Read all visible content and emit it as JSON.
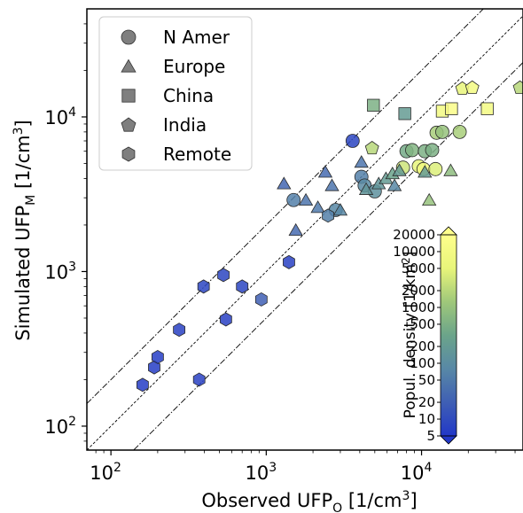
{
  "chart_data": {
    "type": "scatter",
    "xscale": "log",
    "yscale": "log",
    "xlim": [
      70,
      45000
    ],
    "ylim": [
      70,
      50000
    ],
    "xticks": [
      {
        "value": 100,
        "base": "10",
        "exp": "2"
      },
      {
        "value": 1000,
        "base": "10",
        "exp": "3"
      },
      {
        "value": 10000,
        "base": "10",
        "exp": "4"
      }
    ],
    "yticks": [
      {
        "value": 100,
        "base": "10",
        "exp": "2"
      },
      {
        "value": 1000,
        "base": "10",
        "exp": "3"
      },
      {
        "value": 10000,
        "base": "10",
        "exp": "4"
      }
    ],
    "xlabel": {
      "main": "Observed UFP",
      "sub": "O",
      "unit_pre": " [1/cm",
      "unit_sup": "3",
      "unit_post": "]"
    },
    "ylabel": {
      "main": "Simulated UFP",
      "sub": "M",
      "unit_pre": " [1/cm",
      "unit_sup": "3",
      "unit_post": "]"
    },
    "reference_lines": [
      {
        "factor": 2,
        "style": "dash-dot"
      },
      {
        "factor": 1,
        "style": "dashed"
      },
      {
        "factor": 0.5,
        "style": "dash-dot"
      }
    ],
    "legend": {
      "position": "top-left",
      "entries": [
        {
          "label": "N Amer",
          "marker": "circle"
        },
        {
          "label": "Europe",
          "marker": "triangle"
        },
        {
          "label": "China",
          "marker": "square"
        },
        {
          "label": "India",
          "marker": "pentagon"
        },
        {
          "label": "Remote",
          "marker": "hexagon"
        }
      ]
    },
    "colorbar": {
      "label_pre": "Popul. density [1/km",
      "label_sup": "2",
      "label_post": "]",
      "scale": "log",
      "range": [
        5,
        20000
      ],
      "colors": [
        "#2238c8",
        "#3f5fb4",
        "#5888a6",
        "#6ba48a",
        "#9fc87a",
        "#e8f57a",
        "#ffff8c"
      ],
      "ticks": [
        {
          "value": 20000,
          "label": "20000"
        },
        {
          "value": 10000,
          "label": "10000"
        },
        {
          "value": 5000,
          "label": "5000"
        },
        {
          "value": 2000,
          "label": "2000"
        },
        {
          "value": 1000,
          "label": "1000"
        },
        {
          "value": 500,
          "label": "500"
        },
        {
          "value": 200,
          "label": "200"
        },
        {
          "value": 100,
          "label": "100"
        },
        {
          "value": 50,
          "label": "50"
        },
        {
          "value": 20,
          "label": "20"
        },
        {
          "value": 10,
          "label": "10"
        },
        {
          "value": 5,
          "label": "5"
        }
      ]
    },
    "series": [
      {
        "name": "N Amer",
        "marker": "circle",
        "points": [
          {
            "x": 3600,
            "y": 7000,
            "c": 8
          },
          {
            "x": 1500,
            "y": 2900,
            "c": 60
          },
          {
            "x": 2800,
            "y": 2500,
            "c": 80
          },
          {
            "x": 4100,
            "y": 4100,
            "c": 60
          },
          {
            "x": 4300,
            "y": 3600,
            "c": 90
          },
          {
            "x": 5000,
            "y": 3300,
            "c": 120
          },
          {
            "x": 8000,
            "y": 6000,
            "c": 400
          },
          {
            "x": 8700,
            "y": 6100,
            "c": 600
          },
          {
            "x": 10500,
            "y": 6000,
            "c": 500
          },
          {
            "x": 11700,
            "y": 6100,
            "c": 500
          },
          {
            "x": 12500,
            "y": 7900,
            "c": 1500
          },
          {
            "x": 13600,
            "y": 8000,
            "c": 1000
          },
          {
            "x": 17600,
            "y": 8000,
            "c": 1500
          },
          {
            "x": 7600,
            "y": 4700,
            "c": 3000
          },
          {
            "x": 9600,
            "y": 4800,
            "c": 5000
          },
          {
            "x": 10300,
            "y": 4600,
            "c": 8000
          },
          {
            "x": 12300,
            "y": 4600,
            "c": 4000
          }
        ]
      },
      {
        "name": "Europe",
        "marker": "triangle",
        "points": [
          {
            "x": 1300,
            "y": 3700,
            "c": 25
          },
          {
            "x": 1550,
            "y": 1850,
            "c": 30
          },
          {
            "x": 1800,
            "y": 2900,
            "c": 40
          },
          {
            "x": 2150,
            "y": 2600,
            "c": 50
          },
          {
            "x": 2400,
            "y": 4400,
            "c": 30
          },
          {
            "x": 2650,
            "y": 3600,
            "c": 40
          },
          {
            "x": 3000,
            "y": 2500,
            "c": 80
          },
          {
            "x": 4100,
            "y": 5100,
            "c": 40
          },
          {
            "x": 4400,
            "y": 3400,
            "c": 150
          },
          {
            "x": 5300,
            "y": 3700,
            "c": 150
          },
          {
            "x": 5900,
            "y": 4000,
            "c": 200
          },
          {
            "x": 6500,
            "y": 4300,
            "c": 300
          },
          {
            "x": 7200,
            "y": 4500,
            "c": 200
          },
          {
            "x": 6700,
            "y": 3600,
            "c": 80
          },
          {
            "x": 11200,
            "y": 2900,
            "c": 1000
          },
          {
            "x": 10500,
            "y": 4400,
            "c": 200
          },
          {
            "x": 15400,
            "y": 4500,
            "c": 800
          }
        ]
      },
      {
        "name": "China",
        "marker": "square",
        "points": [
          {
            "x": 4900,
            "y": 11900,
            "c": 500
          },
          {
            "x": 7800,
            "y": 10500,
            "c": 200
          },
          {
            "x": 13600,
            "y": 10900,
            "c": 10000
          },
          {
            "x": 15600,
            "y": 11300,
            "c": 15000
          },
          {
            "x": 26500,
            "y": 11300,
            "c": 10000
          }
        ]
      },
      {
        "name": "India",
        "marker": "pentagon",
        "points": [
          {
            "x": 4800,
            "y": 6300,
            "c": 2000
          },
          {
            "x": 18300,
            "y": 15300,
            "c": 5000
          },
          {
            "x": 21200,
            "y": 15500,
            "c": 10000
          },
          {
            "x": 43000,
            "y": 15500,
            "c": 2000
          }
        ]
      },
      {
        "name": "Remote",
        "marker": "hexagon",
        "points": [
          {
            "x": 160,
            "y": 185,
            "c": 6
          },
          {
            "x": 190,
            "y": 240,
            "c": 6
          },
          {
            "x": 200,
            "y": 280,
            "c": 6
          },
          {
            "x": 275,
            "y": 420,
            "c": 7
          },
          {
            "x": 370,
            "y": 200,
            "c": 7
          },
          {
            "x": 395,
            "y": 800,
            "c": 8
          },
          {
            "x": 530,
            "y": 950,
            "c": 8
          },
          {
            "x": 550,
            "y": 490,
            "c": 7
          },
          {
            "x": 700,
            "y": 800,
            "c": 8
          },
          {
            "x": 930,
            "y": 660,
            "c": 20
          },
          {
            "x": 1400,
            "y": 1150,
            "c": 7
          },
          {
            "x": 2500,
            "y": 2300,
            "c": 60
          }
        ]
      }
    ]
  }
}
